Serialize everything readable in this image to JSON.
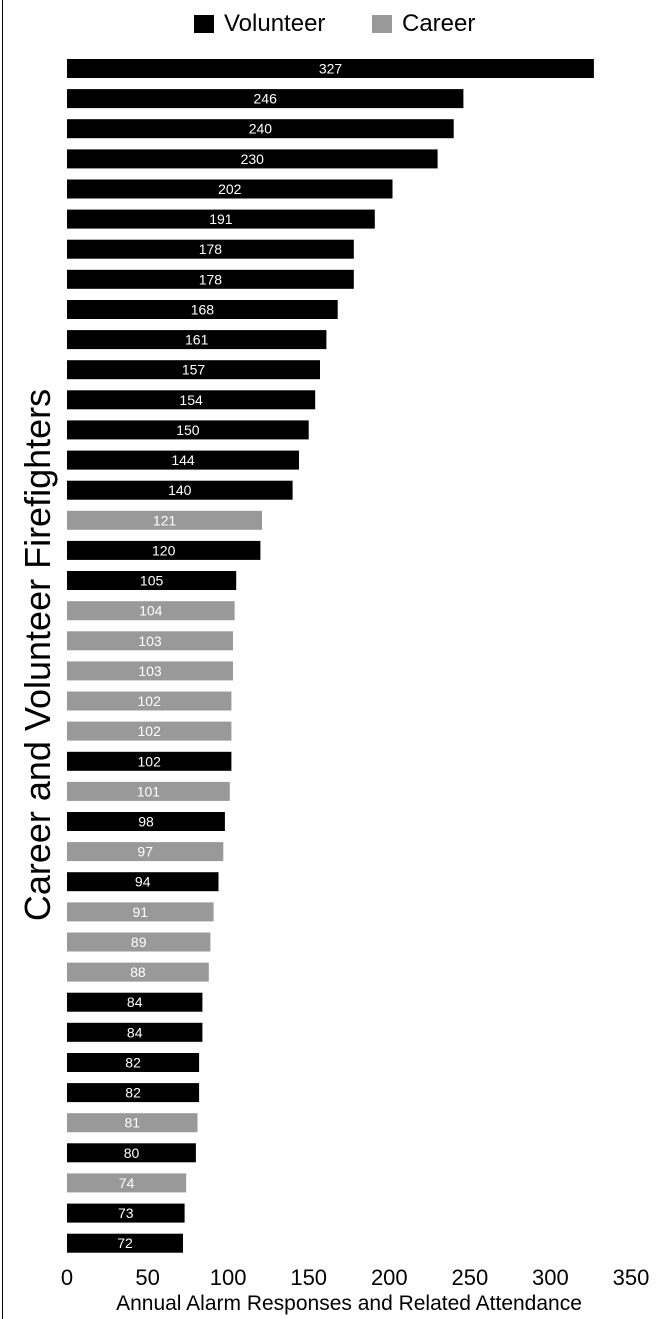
{
  "chart_data": {
    "type": "bar",
    "orientation": "horizontal",
    "xlabel": "Annual Alarm Responses and Related Attendance",
    "ylabel": "Career and Volunteer Firefighters",
    "xlim": [
      0,
      350
    ],
    "x_ticks": [
      "0",
      "50",
      "100",
      "150",
      "200",
      "250",
      "300",
      "350"
    ],
    "legend": {
      "placement": "top",
      "entries": [
        {
          "name": "Volunteer",
          "color": "#000000"
        },
        {
          "name": "Career",
          "color": "#999999"
        }
      ]
    },
    "bars": [
      {
        "value": 327,
        "series": "Volunteer"
      },
      {
        "value": 246,
        "series": "Volunteer"
      },
      {
        "value": 240,
        "series": "Volunteer"
      },
      {
        "value": 230,
        "series": "Volunteer"
      },
      {
        "value": 202,
        "series": "Volunteer"
      },
      {
        "value": 191,
        "series": "Volunteer"
      },
      {
        "value": 178,
        "series": "Volunteer"
      },
      {
        "value": 178,
        "series": "Volunteer"
      },
      {
        "value": 168,
        "series": "Volunteer"
      },
      {
        "value": 161,
        "series": "Volunteer"
      },
      {
        "value": 157,
        "series": "Volunteer"
      },
      {
        "value": 154,
        "series": "Volunteer"
      },
      {
        "value": 150,
        "series": "Volunteer"
      },
      {
        "value": 144,
        "series": "Volunteer"
      },
      {
        "value": 140,
        "series": "Volunteer"
      },
      {
        "value": 121,
        "series": "Career"
      },
      {
        "value": 120,
        "series": "Volunteer"
      },
      {
        "value": 105,
        "series": "Volunteer"
      },
      {
        "value": 104,
        "series": "Career"
      },
      {
        "value": 103,
        "series": "Career"
      },
      {
        "value": 103,
        "series": "Career"
      },
      {
        "value": 102,
        "series": "Career"
      },
      {
        "value": 102,
        "series": "Career"
      },
      {
        "value": 102,
        "series": "Volunteer"
      },
      {
        "value": 101,
        "series": "Career"
      },
      {
        "value": 98,
        "series": "Volunteer"
      },
      {
        "value": 97,
        "series": "Career"
      },
      {
        "value": 94,
        "series": "Volunteer"
      },
      {
        "value": 91,
        "series": "Career"
      },
      {
        "value": 89,
        "series": "Career"
      },
      {
        "value": 88,
        "series": "Career"
      },
      {
        "value": 84,
        "series": "Volunteer"
      },
      {
        "value": 84,
        "series": "Volunteer"
      },
      {
        "value": 82,
        "series": "Volunteer"
      },
      {
        "value": 82,
        "series": "Volunteer"
      },
      {
        "value": 81,
        "series": "Career"
      },
      {
        "value": 80,
        "series": "Volunteer"
      },
      {
        "value": 74,
        "series": "Career"
      },
      {
        "value": 73,
        "series": "Volunteer"
      },
      {
        "value": 72,
        "series": "Volunteer"
      }
    ]
  }
}
